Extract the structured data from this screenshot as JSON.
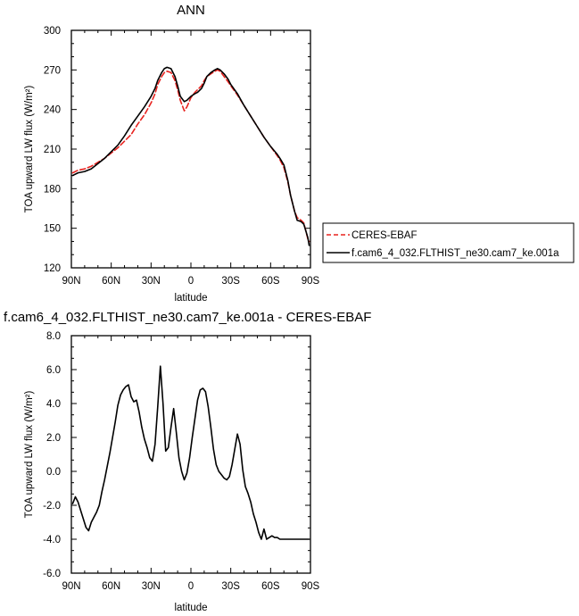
{
  "chart_data": [
    {
      "type": "line",
      "title": "ANN",
      "xlabel": "latitude",
      "ylabel": "TOA upward LW flux (W/m²)",
      "xlim": [
        90,
        -90
      ],
      "ylim": [
        120,
        300
      ],
      "x_ticks": [
        90,
        60,
        30,
        0,
        -30,
        -60,
        -90
      ],
      "x_tick_labels": [
        "90N",
        "60N",
        "30N",
        "0",
        "30S",
        "60S",
        "90S"
      ],
      "y_ticks": [
        120,
        150,
        180,
        210,
        240,
        270,
        300
      ],
      "y_tick_labels": [
        "120",
        "150",
        "180",
        "210",
        "240",
        "270",
        "300"
      ],
      "legend": {
        "position": "right",
        "entries": [
          "CERES-EBAF",
          "f.cam6_4_032.FLTHIST_ne30.cam7_ke.001a"
        ]
      },
      "series": [
        {
          "name": "CERES-EBAF",
          "color": "#e8231f",
          "dash": "dashed",
          "x": [
            89,
            85,
            80,
            75,
            70,
            65,
            60,
            55,
            50,
            45,
            40,
            35,
            30,
            27,
            25,
            22,
            20,
            18,
            15,
            12,
            10,
            8,
            5,
            3,
            0,
            -3,
            -5,
            -8,
            -10,
            -12,
            -15,
            -18,
            -20,
            -22,
            -25,
            -28,
            -30,
            -35,
            -40,
            -45,
            -50,
            -55,
            -60,
            -65,
            -67,
            -70,
            -73,
            -75,
            -78,
            -80,
            -83,
            -85,
            -88,
            -89
          ],
          "y": [
            192,
            194,
            195,
            197,
            200,
            203,
            207,
            211,
            216,
            221,
            229,
            236,
            245,
            252,
            259,
            265,
            268,
            269,
            268,
            262,
            255,
            247,
            239,
            242,
            249,
            253,
            255,
            258,
            262,
            265,
            267,
            269,
            270,
            269,
            265,
            261,
            258,
            251,
            243,
            235,
            227,
            219,
            212,
            205,
            202,
            196,
            185,
            175,
            163,
            158,
            156,
            154,
            142,
            140
          ]
        },
        {
          "name": "f.cam6_4_032.FLTHIST_ne30.cam7_ke.001a",
          "color": "#000000",
          "dash": "solid",
          "x": [
            89,
            85,
            80,
            75,
            70,
            65,
            60,
            55,
            50,
            45,
            40,
            35,
            30,
            27,
            25,
            22,
            20,
            18,
            15,
            12,
            10,
            8,
            5,
            3,
            0,
            -3,
            -5,
            -8,
            -10,
            -12,
            -15,
            -18,
            -20,
            -22,
            -25,
            -28,
            -30,
            -35,
            -40,
            -45,
            -50,
            -55,
            -60,
            -65,
            -67,
            -70,
            -73,
            -75,
            -78,
            -80,
            -83,
            -85,
            -88,
            -89
          ],
          "y": [
            190,
            192,
            193,
            195,
            199,
            203,
            208,
            213,
            220,
            228,
            235,
            242,
            250,
            256,
            262,
            268,
            271,
            272,
            271,
            265,
            258,
            250,
            246,
            247,
            250,
            252,
            253,
            256,
            260,
            265,
            268,
            270,
            271,
            270,
            267,
            263,
            259,
            252,
            243,
            235,
            227,
            219,
            212,
            206,
            203,
            198,
            186,
            175,
            163,
            156,
            155,
            153,
            143,
            137
          ]
        }
      ]
    },
    {
      "type": "line",
      "title": "f.cam6_4_032.FLTHIST_ne30.cam7_ke.001a - CERES-EBAF",
      "xlabel": "latitude",
      "ylabel": "TOA upward LW flux (W/m²)",
      "xlim": [
        90,
        -90
      ],
      "ylim": [
        -6,
        8
      ],
      "x_ticks": [
        90,
        60,
        30,
        0,
        -30,
        -60,
        -90
      ],
      "x_tick_labels": [
        "90N",
        "60N",
        "30N",
        "0",
        "30S",
        "60S",
        "90S"
      ],
      "y_ticks": [
        -6,
        -4,
        -2,
        0,
        2,
        4,
        6,
        8
      ],
      "y_tick_labels": [
        "-6.0",
        "-4.0",
        "-2.0",
        "0.0",
        "2.0",
        "4.0",
        "6.0",
        "8.0"
      ],
      "series": [
        {
          "color": "#000000",
          "dash": "solid",
          "x": [
            89,
            87,
            85,
            83,
            81,
            79,
            77,
            75,
            73,
            71,
            69,
            67,
            65,
            63,
            61,
            59,
            57,
            55,
            53,
            51,
            49,
            47,
            45,
            43,
            41,
            39,
            37,
            35,
            33,
            31,
            29,
            27,
            25,
            23,
            21,
            19,
            17,
            15,
            13,
            11,
            9,
            7,
            5,
            3,
            1,
            -1,
            -3,
            -5,
            -7,
            -9,
            -11,
            -13,
            -15,
            -17,
            -19,
            -21,
            -23,
            -25,
            -27,
            -29,
            -31,
            -33,
            -35,
            -37,
            -39,
            -41,
            -43,
            -45,
            -47,
            -49,
            -51,
            -53,
            -55,
            -57,
            -59,
            -61,
            -63,
            -65,
            -67,
            -69,
            -71,
            -73,
            -75,
            -77,
            -79,
            -81,
            -83,
            -85,
            -87,
            -89
          ],
          "y": [
            -1.9,
            -1.5,
            -1.8,
            -2.3,
            -2.8,
            -3.3,
            -3.5,
            -3.0,
            -2.7,
            -2.4,
            -2.0,
            -1.2,
            -0.5,
            0.3,
            1.1,
            2.0,
            2.9,
            3.9,
            4.5,
            4.8,
            5.0,
            5.1,
            4.4,
            4.1,
            4.2,
            3.5,
            2.6,
            1.9,
            1.4,
            0.8,
            0.6,
            1.6,
            3.8,
            6.2,
            4.0,
            1.2,
            1.4,
            2.6,
            3.7,
            2.3,
            0.8,
            0.0,
            -0.5,
            -0.1,
            0.8,
            2.0,
            3.1,
            4.2,
            4.8,
            4.9,
            4.7,
            3.8,
            2.6,
            1.3,
            0.4,
            0.0,
            -0.2,
            -0.4,
            -0.5,
            -0.3,
            0.4,
            1.3,
            2.2,
            1.6,
            0.1,
            -0.9,
            -1.3,
            -1.8,
            -2.5,
            -3.0,
            -3.6,
            -4.0,
            -3.4,
            -4.0,
            -3.9,
            -3.8,
            -3.9,
            -3.9,
            -4.0,
            -4.0,
            -4.0,
            -4.0,
            -4.0,
            -4.0,
            -4.0,
            -4.0,
            -4.0,
            -4.0,
            -4.0,
            -4.0
          ]
        }
      ]
    }
  ]
}
